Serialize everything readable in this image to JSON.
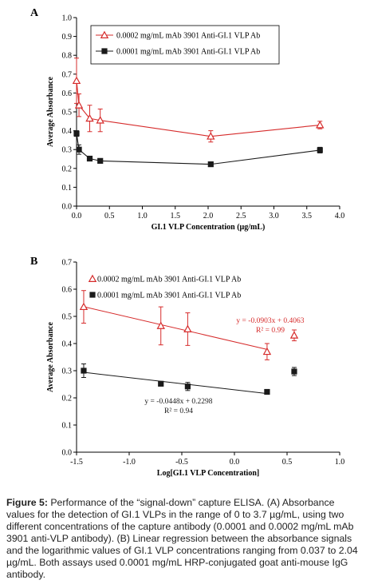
{
  "chart_data": [
    {
      "panel": "A",
      "type": "line",
      "xlabel": "GI.1  VLP  Concentration  (µg/mL)",
      "ylabel": "Average Absorbance",
      "xlim": [
        0,
        4
      ],
      "ylim": [
        0,
        1
      ],
      "xticks": [
        "0.0",
        "0.5",
        "1.0",
        "1.5",
        "2.0",
        "2.5",
        "3.0",
        "3.5",
        "4.0"
      ],
      "yticks": [
        "0.0",
        "0.1",
        "0.2",
        "0.3",
        "0.4",
        "0.5",
        "0.6",
        "0.7",
        "0.8",
        "0.9",
        "1.0"
      ],
      "grid": false,
      "legend_position": "top-center",
      "series": [
        {
          "name": "0.0002 mg/mL mAb 3901 Anti-GI.1 VLP Ab",
          "color": "#d62b2b",
          "marker": "open-triangle",
          "x": [
            0,
            0.037,
            0.2,
            0.36,
            2.04,
            3.7
          ],
          "y": [
            0.665,
            0.535,
            0.465,
            0.455,
            0.37,
            0.43
          ],
          "err": [
            0.12,
            0.06,
            0.07,
            0.06,
            0.03,
            0.02
          ]
        },
        {
          "name": "0.0001 mg/mL mAb 3901 Anti-GI.1 VLP Ab",
          "color": "#1a1a1a",
          "marker": "filled-square",
          "x": [
            0,
            0.037,
            0.2,
            0.36,
            2.04,
            3.7
          ],
          "y": [
            0.385,
            0.3,
            0.252,
            0.24,
            0.222,
            0.297
          ],
          "err": [
            0.015,
            0.025,
            0.008,
            0.012,
            0.008,
            0.015
          ]
        }
      ]
    },
    {
      "panel": "B",
      "type": "scatter",
      "xlabel": "Log[GI.1  VLP  Concentration]",
      "ylabel": "Average Absorbance",
      "xlim": [
        -1.5,
        1
      ],
      "ylim": [
        0,
        0.7
      ],
      "xticks": [
        "-1.5",
        "-1.0",
        "-0.5",
        "0.0",
        "0.5",
        "1.0"
      ],
      "yticks": [
        "0.0",
        "0.1",
        "0.2",
        "0.3",
        "0.4",
        "0.5",
        "0.6",
        "0.7"
      ],
      "grid": false,
      "legend_position": "top-right",
      "series": [
        {
          "name": "0.0002 mg/mL mAb 3901 Anti-GI.1 VLP Ab",
          "color": "#d62b2b",
          "marker": "open-triangle",
          "x": [
            -1.432,
            -0.699,
            -0.444,
            0.31,
            0.568
          ],
          "y": [
            0.535,
            0.465,
            0.453,
            0.37,
            0.43
          ],
          "err": [
            0.06,
            0.07,
            0.06,
            0.03,
            0.02
          ]
        },
        {
          "name": "0.0001 mg/mL mAb 3901 Anti-GI.1 VLP Ab",
          "color": "#1a1a1a",
          "marker": "filled-square",
          "x": [
            -1.432,
            -0.699,
            -0.444,
            0.31,
            0.568
          ],
          "y": [
            0.3,
            0.252,
            0.242,
            0.222,
            0.297
          ],
          "err": [
            0.025,
            0.008,
            0.015,
            0.008,
            0.015
          ]
        }
      ],
      "fits": [
        {
          "series": 0,
          "slope": -0.0903,
          "intercept": 0.4063,
          "x_range": [
            -1.432,
            0.31
          ],
          "equation": "y = -0.0903x  + 0.4063",
          "r2": "R² = 0.99"
        },
        {
          "series": 1,
          "slope": -0.0448,
          "intercept": 0.2298,
          "x_range": [
            -1.432,
            0.31
          ],
          "equation": "y = -0.0448x  + 0.2298",
          "r2": "R² = 0.94"
        }
      ]
    }
  ],
  "caption": {
    "label": "Figure 5:",
    "text": " Performance of the “signal-down” capture ELISA. (A) Absorbance values for the detection of GI.1 VLPs in the range of 0 to 3.7 µg/mL, using two different concentrations of the capture antibody (0.0001 and 0.0002 mg/mL mAb 3901 anti-VLP antibody). (B) Linear regression between the absorbance signals and the logarithmic values of GI.1 VLP concentrations ranging from 0.037 to 2.04 µg/mL. Both assays used 0.0001 mg/mL HRP-conjugated goat anti-mouse IgG antibody."
  }
}
